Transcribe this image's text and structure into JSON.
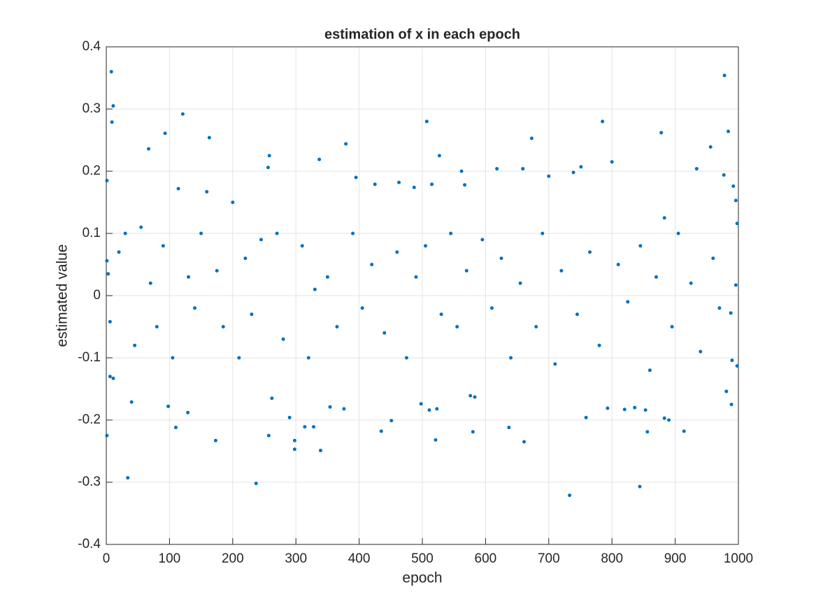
{
  "chart_data": {
    "type": "scatter",
    "title": "estimation of x in each epoch",
    "x_label": "epoch",
    "y_label": "estimated value",
    "color": "#0072bd",
    "grid": true,
    "xlim": [
      0,
      1000
    ],
    "xticks": [
      0,
      100,
      200,
      300,
      400,
      500,
      600,
      700,
      800,
      900,
      1000
    ],
    "ylim": [
      -0.4,
      0.4
    ],
    "yticks": [
      -0.4,
      -0.3,
      -0.2,
      -0.1,
      0,
      0.1,
      0.2,
      0.3,
      0.4
    ],
    "x": [
      8,
      11,
      9,
      1,
      1,
      3,
      1,
      6,
      11,
      6,
      34,
      40,
      67,
      93,
      121,
      163,
      98,
      110,
      129,
      173,
      114,
      159,
      237,
      258,
      256,
      257,
      262,
      298,
      298,
      290,
      314,
      328,
      337,
      339,
      379,
      354,
      376,
      425,
      435,
      451,
      395,
      463,
      507,
      487,
      515,
      527,
      521,
      523,
      511,
      498,
      562,
      576,
      580,
      583,
      618,
      567,
      659,
      661,
      637,
      673,
      700,
      739,
      751,
      733,
      759,
      785,
      800,
      793,
      844,
      856,
      878,
      890,
      883,
      853,
      836,
      820,
      934,
      883,
      914,
      978,
      984,
      956,
      992,
      996,
      998,
      998,
      989,
      990,
      988,
      996,
      981,
      977,
      20,
      30,
      45,
      55,
      70,
      80,
      90,
      105,
      130,
      140,
      150,
      175,
      185,
      200,
      210,
      220,
      230,
      245,
      270,
      280,
      310,
      320,
      330,
      350,
      365,
      390,
      405,
      420,
      440,
      460,
      475,
      490,
      505,
      530,
      545,
      555,
      570,
      595,
      610,
      625,
      640,
      655,
      680,
      690,
      710,
      720,
      745,
      765,
      780,
      810,
      825,
      845,
      860,
      870,
      895,
      905,
      925,
      940,
      960,
      970
    ],
    "values": [
      0.36,
      0.305,
      0.279,
      0.185,
      0.056,
      0.035,
      -0.225,
      -0.13,
      -0.133,
      -0.042,
      -0.293,
      -0.171,
      0.236,
      0.261,
      0.292,
      0.254,
      -0.178,
      -0.212,
      -0.188,
      -0.233,
      0.172,
      0.167,
      -0.302,
      0.225,
      0.206,
      -0.225,
      -0.165,
      -0.247,
      -0.233,
      -0.196,
      -0.211,
      -0.211,
      0.219,
      -0.249,
      0.244,
      -0.179,
      -0.182,
      0.179,
      -0.218,
      -0.201,
      0.19,
      0.182,
      0.28,
      0.174,
      0.179,
      0.225,
      -0.232,
      -0.182,
      -0.184,
      -0.174,
      0.2,
      -0.161,
      -0.219,
      -0.163,
      0.204,
      0.178,
      0.204,
      -0.235,
      -0.212,
      0.253,
      0.192,
      0.198,
      0.207,
      -0.321,
      -0.196,
      0.28,
      0.215,
      -0.181,
      -0.307,
      -0.219,
      0.262,
      -0.2,
      -0.197,
      -0.184,
      -0.18,
      -0.183,
      0.204,
      0.125,
      -0.218,
      0.354,
      0.264,
      0.239,
      0.176,
      0.153,
      0.116,
      -0.113,
      -0.175,
      -0.104,
      -0.028,
      0.017,
      -0.154,
      0.194,
      0.07,
      0.1,
      -0.08,
      0.11,
      0.02,
      -0.05,
      0.08,
      -0.1,
      0.03,
      -0.02,
      0.1,
      0.04,
      -0.05,
      0.15,
      -0.1,
      0.06,
      -0.03,
      0.09,
      0.1,
      -0.07,
      0.08,
      -0.1,
      0.01,
      0.03,
      -0.05,
      0.1,
      -0.02,
      0.05,
      -0.06,
      0.07,
      -0.1,
      0.03,
      0.08,
      -0.03,
      0.1,
      -0.05,
      0.04,
      0.09,
      -0.02,
      0.06,
      -0.1,
      0.02,
      -0.05,
      0.1,
      -0.11,
      0.04,
      -0.03,
      0.07,
      -0.08,
      0.05,
      -0.01,
      0.08,
      -0.12,
      0.03,
      -0.05,
      0.1,
      0.02,
      -0.09,
      0.06,
      -0.02
    ]
  }
}
